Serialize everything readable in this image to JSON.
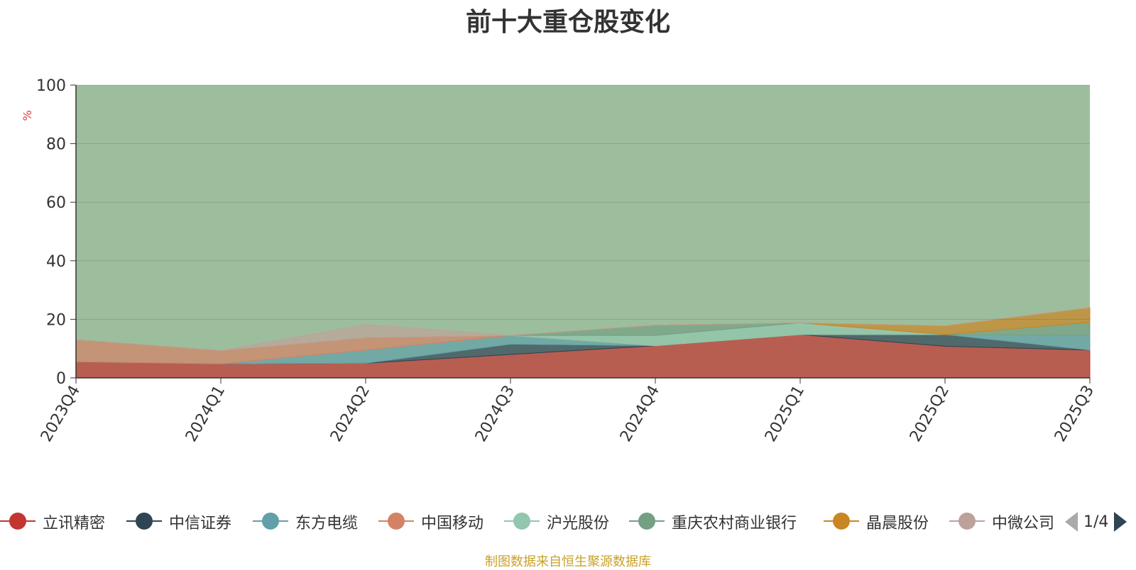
{
  "chart_data": {
    "type": "area",
    "title": "前十大重仓股变化",
    "ylabel": "%",
    "ylim": [
      0,
      100
    ],
    "yticks": [
      0,
      20,
      40,
      60,
      80,
      100
    ],
    "categories": [
      "2023Q4",
      "2024Q1",
      "2024Q2",
      "2024Q3",
      "2024Q4",
      "2025Q1",
      "2025Q2",
      "2025Q3"
    ],
    "grid": true,
    "stacked": true,
    "legend_position": "bottom",
    "series": [
      {
        "name": "立讯精密",
        "color": "#c23531",
        "values": [
          5.5,
          4.8,
          5.0,
          8.0,
          11.0,
          14.8,
          10.8,
          9.5
        ]
      },
      {
        "name": "中信证券",
        "color": "#2f4554",
        "values": [
          0,
          0,
          0,
          3.5,
          0,
          0,
          4.0,
          0
        ]
      },
      {
        "name": "东方电缆",
        "color": "#61a0a8",
        "values": [
          0,
          0,
          4.5,
          3.0,
          0,
          0,
          0,
          5.0
        ]
      },
      {
        "name": "中国移动",
        "color": "#d48265",
        "values": [
          7.5,
          4.5,
          4.2,
          0,
          0,
          0,
          0,
          0
        ]
      },
      {
        "name": "沪光股份",
        "color": "#91c7ae",
        "values": [
          0,
          0,
          0,
          0,
          3.5,
          4.0,
          0,
          0
        ]
      },
      {
        "name": "重庆农村商业银行",
        "color": "#749f83",
        "values": [
          0,
          0,
          0,
          0,
          3.5,
          0,
          0,
          4.5
        ]
      },
      {
        "name": "晶晨股份",
        "color": "#ca8622",
        "values": [
          0,
          0,
          0,
          0,
          0,
          0,
          3.0,
          5.0
        ]
      },
      {
        "name": "中微公司",
        "color": "#bda29a",
        "values": [
          0,
          0,
          4.5,
          0,
          0,
          0,
          0,
          0
        ]
      }
    ],
    "remaining_color": "#73a373"
  },
  "legend": {
    "items": [
      "立讯精密",
      "中信证券",
      "东方电缆",
      "中国移动",
      "沪光股份",
      "重庆农村商业银行",
      "晶晨股份",
      "中微公司"
    ],
    "page_indicator": "1/4"
  },
  "source_note": "制图数据来自恒生聚源数据库"
}
